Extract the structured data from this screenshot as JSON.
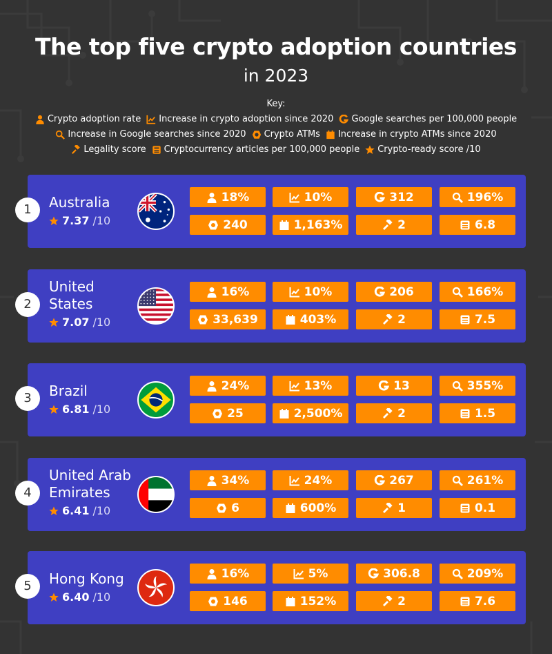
{
  "title": "The top five crypto adoption countries",
  "subtitle": "in 2023",
  "key": {
    "title": "Key:",
    "items": [
      {
        "icon": "person-icon",
        "label": "Crypto adoption rate"
      },
      {
        "icon": "trend-chart-icon",
        "label": "Increase in crypto adoption since 2020"
      },
      {
        "icon": "google-icon",
        "label": "Google searches per 100,000 people"
      },
      {
        "icon": "search-icon",
        "label": "Increase in Google searches since 2020"
      },
      {
        "icon": "atm-icon",
        "label": "Crypto ATMs"
      },
      {
        "icon": "calendar-icon",
        "label": "Increase in crypto ATMs since 2020"
      },
      {
        "icon": "gavel-icon",
        "label": "Legality score"
      },
      {
        "icon": "newspaper-icon",
        "label": "Cryptocurrency articles per 100,000 people"
      },
      {
        "icon": "star-icon",
        "label": "Crypto-ready score /10"
      }
    ]
  },
  "colors": {
    "background": "#333333",
    "card": "#3f3fc2",
    "stat": "#ff8c00",
    "icon": "#ff8c00"
  },
  "countries": [
    {
      "rank": "1",
      "name_lines": [
        "Australia"
      ],
      "score": "7.37",
      "score_suffix": "/10",
      "flag": "australia",
      "stats": [
        "18%",
        "10%",
        "312",
        "196%",
        "240",
        "1,163%",
        "2",
        "6.8"
      ]
    },
    {
      "rank": "2",
      "name_lines": [
        "United",
        "States"
      ],
      "score": "7.07",
      "score_suffix": "/10",
      "flag": "usa",
      "stats": [
        "16%",
        "10%",
        "206",
        "166%",
        "33,639",
        "403%",
        "2",
        "7.5"
      ]
    },
    {
      "rank": "3",
      "name_lines": [
        "Brazil"
      ],
      "score": "6.81",
      "score_suffix": "/10",
      "flag": "brazil",
      "stats": [
        "24%",
        "13%",
        "13",
        "355%",
        "25",
        "2,500%",
        "2",
        "1.5"
      ]
    },
    {
      "rank": "4",
      "name_lines": [
        "United Arab",
        "Emirates"
      ],
      "score": "6.41",
      "score_suffix": "/10",
      "flag": "uae",
      "stats": [
        "34%",
        "24%",
        "267",
        "261%",
        "6",
        "600%",
        "1",
        "0.1"
      ]
    },
    {
      "rank": "5",
      "name_lines": [
        "Hong Kong"
      ],
      "score": "6.40",
      "score_suffix": "/10",
      "flag": "hongkong",
      "stats": [
        "16%",
        "5%",
        "306.8",
        "209%",
        "146",
        "152%",
        "2",
        "7.6"
      ]
    }
  ]
}
